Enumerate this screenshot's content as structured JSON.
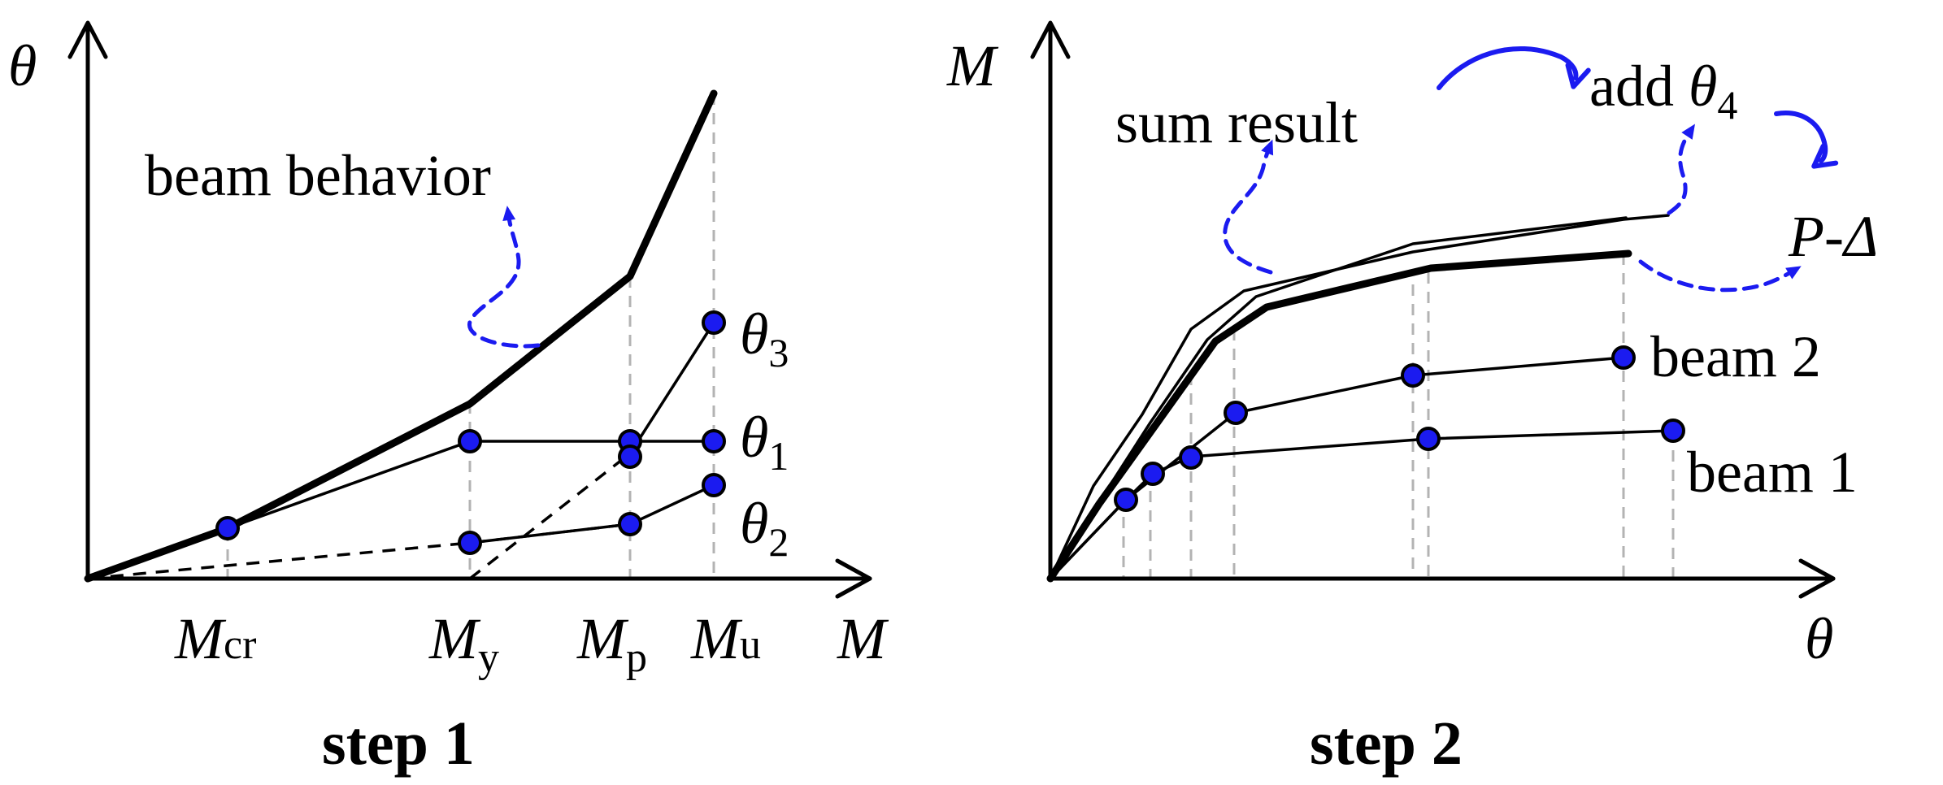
{
  "step1": {
    "caption": "step 1",
    "y_axis_symbol": "θ",
    "x_axis_symbol": "M",
    "annotation": "beam behavior",
    "x_ticks": [
      {
        "base": "M",
        "sub": "cr"
      },
      {
        "base": "M",
        "sub": "y"
      },
      {
        "base": "M",
        "sub": "p"
      },
      {
        "base": "M",
        "sub": "u"
      }
    ],
    "curve_labels": [
      {
        "base": "θ",
        "sub": "3"
      },
      {
        "base": "θ",
        "sub": "1"
      },
      {
        "base": "θ",
        "sub": "2"
      }
    ]
  },
  "step2": {
    "caption": "step 2",
    "y_axis_symbol": "M",
    "x_axis_symbol": "θ",
    "sum_label": "sum result",
    "add_label": "add",
    "add_symbol": {
      "base": "θ",
      "sub": "4"
    },
    "pdelta_label": "P-Δ",
    "curve_labels": [
      "beam 2",
      "beam 1"
    ]
  },
  "colors": {
    "marker": "#1b1bf0",
    "arrow": "#1b1bf0",
    "guide": "#b3b3b3"
  }
}
